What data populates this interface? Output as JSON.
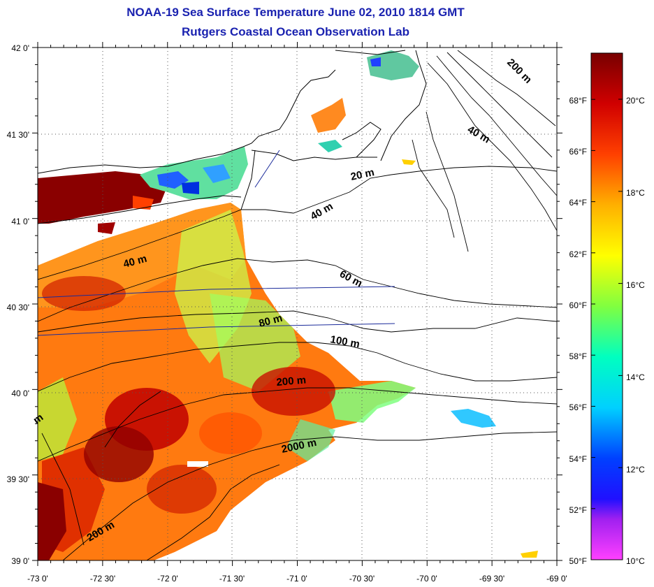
{
  "title": "NOAA-19 Sea Surface Temperature June 02, 2010 1814 GMT",
  "subtitle": "Rutgers Coastal Ocean Observation Lab",
  "map": {
    "lon_range": [
      -73.0,
      -69.0
    ],
    "lat_range": [
      39.0,
      42.0
    ],
    "lon_ticks": [
      "-73 0'",
      "-72 30'",
      "-72 0'",
      "-71 30'",
      "-71 0'",
      "-70 30'",
      "-70 0'",
      "-69 30'",
      "-69 0'"
    ],
    "lat_ticks": [
      "42 0'",
      "41 30'",
      "41 0'",
      "40 30'",
      "40 0'",
      "39 30'",
      "39 0'"
    ],
    "grid": "dotted",
    "contour_labels": [
      "200 m",
      "40 m",
      "20 m",
      "40 m",
      "40 m",
      "60 m",
      "80 m",
      "100 m",
      "200 m",
      "2000 m",
      "200 m",
      "m"
    ]
  },
  "colorbar": {
    "fahrenheit_labels": [
      "68°F",
      "66°F",
      "64°F",
      "62°F",
      "60°F",
      "58°F",
      "56°F",
      "54°F",
      "52°F",
      "50°F"
    ],
    "celsius_labels": [
      "20°C",
      "18°C",
      "16°C",
      "14°C",
      "12°C",
      "10°C"
    ],
    "range_c": [
      10,
      21
    ],
    "colors": [
      "#ff40ff",
      "#a020f0",
      "#0000ff",
      "#00c8ff",
      "#00ffc8",
      "#80ff40",
      "#ffff00",
      "#ff9000",
      "#ff2000",
      "#c00000",
      "#800000"
    ]
  },
  "colors": {
    "title": "#1a22b0",
    "ship_track": "#1a2a9a"
  }
}
